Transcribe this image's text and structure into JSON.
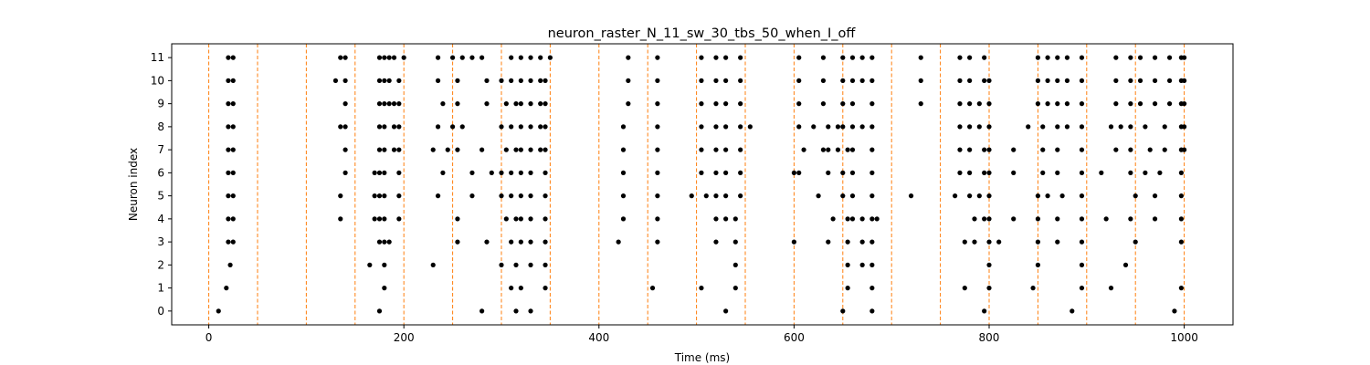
{
  "chart_data": {
    "type": "scatter",
    "title": "neuron_raster_N_11_sw_30_tbs_50_when_I_off",
    "xlabel": "Time (ms)",
    "ylabel": "Neuron index",
    "xlim": [
      -38,
      1050
    ],
    "ylim": [
      -0.6,
      11.6
    ],
    "xticks": [
      0,
      200,
      400,
      600,
      800,
      1000
    ],
    "yticks": [
      0,
      1,
      2,
      3,
      4,
      5,
      6,
      7,
      8,
      9,
      10,
      11
    ],
    "grid": false,
    "legend": "none",
    "vlines": {
      "values": [
        0,
        50,
        100,
        150,
        200,
        250,
        300,
        350,
        400,
        450,
        500,
        550,
        600,
        650,
        700,
        750,
        800,
        850,
        900,
        950,
        1000
      ],
      "color": "#ff7f0e",
      "style": "dashed"
    },
    "marker_color": "#000000",
    "spikes": [
      {
        "neuron": 0,
        "times": [
          10,
          175,
          280,
          315,
          330,
          530,
          650,
          680,
          795,
          885,
          990
        ]
      },
      {
        "neuron": 1,
        "times": [
          18,
          180,
          310,
          320,
          345,
          455,
          505,
          540,
          655,
          680,
          775,
          800,
          845,
          895,
          925,
          997
        ]
      },
      {
        "neuron": 2,
        "times": [
          22,
          165,
          180,
          230,
          300,
          315,
          330,
          345,
          540,
          655,
          670,
          680,
          800,
          850,
          895,
          940
        ]
      },
      {
        "neuron": 3,
        "times": [
          20,
          25,
          175,
          180,
          185,
          255,
          285,
          310,
          320,
          330,
          345,
          420,
          460,
          520,
          540,
          600,
          635,
          655,
          670,
          680,
          775,
          785,
          800,
          810,
          850,
          870,
          895,
          950,
          997
        ]
      },
      {
        "neuron": 4,
        "times": [
          20,
          25,
          135,
          170,
          175,
          180,
          195,
          255,
          305,
          315,
          320,
          330,
          345,
          425,
          460,
          520,
          530,
          540,
          640,
          655,
          660,
          670,
          680,
          685,
          785,
          795,
          800,
          825,
          850,
          870,
          895,
          920,
          945,
          970,
          997
        ]
      },
      {
        "neuron": 5,
        "times": [
          20,
          25,
          135,
          170,
          175,
          180,
          195,
          235,
          270,
          300,
          310,
          320,
          330,
          345,
          425,
          460,
          495,
          510,
          520,
          530,
          545,
          625,
          650,
          660,
          680,
          720,
          765,
          780,
          790,
          800,
          850,
          860,
          875,
          895,
          950,
          970,
          997
        ]
      },
      {
        "neuron": 6,
        "times": [
          20,
          25,
          140,
          170,
          175,
          180,
          195,
          240,
          270,
          290,
          300,
          310,
          320,
          330,
          345,
          425,
          460,
          505,
          520,
          530,
          545,
          600,
          605,
          635,
          650,
          660,
          680,
          770,
          780,
          795,
          800,
          825,
          855,
          870,
          895,
          915,
          945,
          960,
          975,
          997
        ]
      },
      {
        "neuron": 7,
        "times": [
          20,
          25,
          140,
          175,
          180,
          190,
          195,
          230,
          245,
          255,
          280,
          305,
          315,
          320,
          330,
          340,
          345,
          425,
          460,
          505,
          520,
          530,
          545,
          610,
          630,
          635,
          645,
          655,
          660,
          680,
          770,
          780,
          795,
          800,
          825,
          855,
          870,
          895,
          930,
          945,
          965,
          980,
          997,
          1000
        ]
      },
      {
        "neuron": 8,
        "times": [
          20,
          25,
          135,
          140,
          175,
          180,
          190,
          195,
          235,
          250,
          260,
          300,
          310,
          320,
          330,
          340,
          345,
          425,
          460,
          505,
          520,
          530,
          545,
          555,
          605,
          620,
          635,
          645,
          650,
          660,
          670,
          680,
          770,
          780,
          790,
          800,
          840,
          855,
          870,
          880,
          895,
          925,
          935,
          945,
          960,
          980,
          997,
          1000
        ]
      },
      {
        "neuron": 9,
        "times": [
          20,
          25,
          140,
          175,
          180,
          185,
          190,
          195,
          240,
          255,
          285,
          305,
          315,
          320,
          330,
          340,
          345,
          430,
          460,
          505,
          520,
          530,
          545,
          605,
          630,
          650,
          660,
          680,
          730,
          770,
          780,
          790,
          800,
          850,
          860,
          870,
          880,
          895,
          930,
          945,
          955,
          970,
          985,
          997,
          1000
        ]
      },
      {
        "neuron": 10,
        "times": [
          20,
          25,
          130,
          140,
          175,
          180,
          185,
          195,
          235,
          255,
          285,
          300,
          310,
          320,
          330,
          340,
          345,
          430,
          460,
          505,
          520,
          530,
          545,
          605,
          630,
          650,
          660,
          670,
          680,
          730,
          770,
          780,
          795,
          800,
          850,
          860,
          870,
          880,
          895,
          930,
          945,
          955,
          970,
          985,
          997,
          1000
        ]
      },
      {
        "neuron": 11,
        "times": [
          20,
          25,
          135,
          140,
          175,
          180,
          185,
          190,
          200,
          235,
          250,
          260,
          270,
          280,
          310,
          320,
          330,
          340,
          350,
          430,
          460,
          505,
          520,
          530,
          545,
          605,
          630,
          650,
          660,
          670,
          680,
          730,
          770,
          780,
          795,
          850,
          860,
          870,
          880,
          895,
          930,
          945,
          955,
          970,
          985,
          997,
          1000
        ]
      }
    ]
  }
}
